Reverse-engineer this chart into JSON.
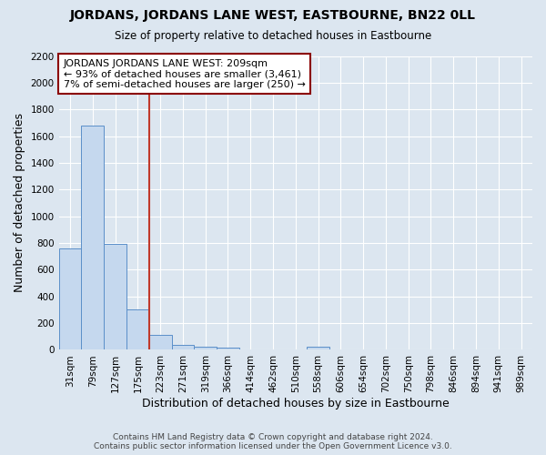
{
  "title": "JORDANS, JORDANS LANE WEST, EASTBOURNE, BN22 0LL",
  "subtitle": "Size of property relative to detached houses in Eastbourne",
  "xlabel": "Distribution of detached houses by size in Eastbourne",
  "ylabel": "Number of detached properties",
  "annotation_title": "JORDANS JORDANS LANE WEST: 209sqm",
  "annotation_line1": "← 93% of detached houses are smaller (3,461)",
  "annotation_line2": "7% of semi-detached houses are larger (250) →",
  "categories": [
    "31sqm",
    "79sqm",
    "127sqm",
    "175sqm",
    "223sqm",
    "271sqm",
    "319sqm",
    "366sqm",
    "414sqm",
    "462sqm",
    "510sqm",
    "558sqm",
    "606sqm",
    "654sqm",
    "702sqm",
    "750sqm",
    "798sqm",
    "846sqm",
    "894sqm",
    "941sqm",
    "989sqm"
  ],
  "values": [
    760,
    1680,
    790,
    300,
    110,
    40,
    25,
    20,
    0,
    0,
    0,
    25,
    0,
    0,
    0,
    0,
    0,
    0,
    0,
    0,
    0
  ],
  "bar_color": "#c5d8ee",
  "bar_edge_color": "#5b8fc9",
  "highlight_bar_index": 3,
  "highlight_bar_color": "#c5d8ee",
  "highlight_bar_edge_color": "#8b0000",
  "vline_color": "#c0392b",
  "vline_x": 3.5,
  "ylim": [
    0,
    2200
  ],
  "yticks": [
    0,
    200,
    400,
    600,
    800,
    1000,
    1200,
    1400,
    1600,
    1800,
    2000,
    2200
  ],
  "annotation_box_color": "#ffffff",
  "annotation_box_edge": "#8b0000",
  "background_color": "#dce6f0",
  "grid_color": "#ffffff",
  "footer_line1": "Contains HM Land Registry data © Crown copyright and database right 2024.",
  "footer_line2": "Contains public sector information licensed under the Open Government Licence v3.0."
}
